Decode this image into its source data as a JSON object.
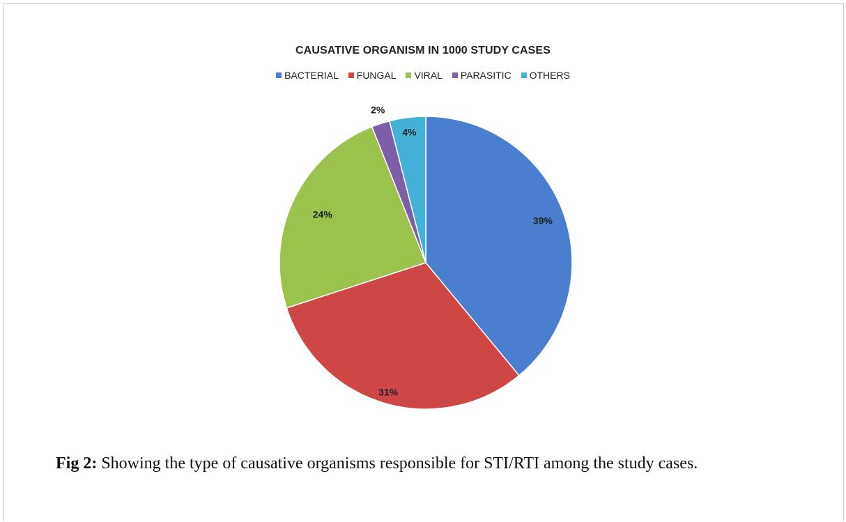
{
  "figure": {
    "caption_label": "Fig 2:",
    "caption_text": " Showing the type of causative organisms responsible for STI/RTI among the study cases."
  },
  "chart_data": {
    "type": "pie",
    "title": "CAUSATIVE ORGANISM IN 1000 STUDY CASES",
    "legend_position": "top",
    "slices": [
      {
        "label": "BACTERIAL",
        "value": 39,
        "display": "39%",
        "color": "#4a7fcf"
      },
      {
        "label": "FUNGAL",
        "value": 31,
        "display": "31%",
        "color": "#cf4745"
      },
      {
        "label": "VIRAL",
        "value": 24,
        "display": "24%",
        "color": "#9ac24d"
      },
      {
        "label": "PARASITIC",
        "value": 2,
        "display": "2%",
        "color": "#7e5ea8"
      },
      {
        "label": "OTHERS",
        "value": 4,
        "display": "4%",
        "color": "#44b2d6"
      }
    ]
  }
}
